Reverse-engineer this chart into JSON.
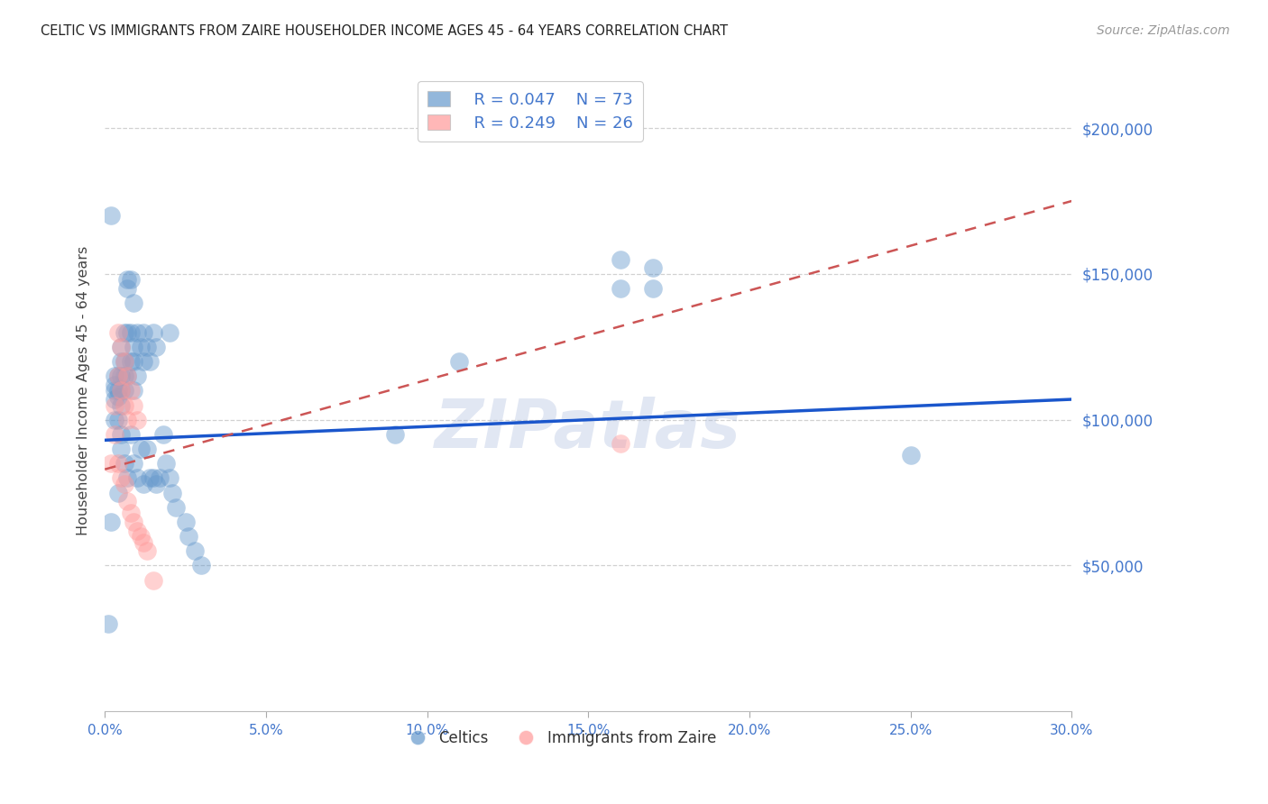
{
  "title": "CELTIC VS IMMIGRANTS FROM ZAIRE HOUSEHOLDER INCOME AGES 45 - 64 YEARS CORRELATION CHART",
  "source": "Source: ZipAtlas.com",
  "ylabel": "Householder Income Ages 45 - 64 years",
  "watermark": "ZIPatlas",
  "xlim": [
    0.0,
    0.3
  ],
  "ylim": [
    0,
    220000
  ],
  "ytick_values": [
    50000,
    100000,
    150000,
    200000
  ],
  "ytick_labels": [
    "$50,000",
    "$100,000",
    "$150,000",
    "$200,000"
  ],
  "legend_blue_r": "0.047",
  "legend_blue_n": "73",
  "legend_pink_r": "0.249",
  "legend_pink_n": "26",
  "legend_blue_label": "Celtics",
  "legend_pink_label": "Immigrants from Zaire",
  "blue_color": "#6699CC",
  "pink_color": "#FF9999",
  "blue_line_color": "#1A56CC",
  "pink_line_color": "#CC5555",
  "axis_label_color": "#4477CC",
  "blue_x": [
    0.001,
    0.002,
    0.002,
    0.003,
    0.003,
    0.003,
    0.003,
    0.003,
    0.004,
    0.004,
    0.004,
    0.004,
    0.004,
    0.005,
    0.005,
    0.005,
    0.005,
    0.005,
    0.005,
    0.005,
    0.006,
    0.006,
    0.006,
    0.006,
    0.006,
    0.007,
    0.007,
    0.007,
    0.007,
    0.007,
    0.008,
    0.008,
    0.008,
    0.008,
    0.009,
    0.009,
    0.009,
    0.009,
    0.009,
    0.01,
    0.01,
    0.01,
    0.011,
    0.011,
    0.012,
    0.012,
    0.012,
    0.013,
    0.013,
    0.014,
    0.014,
    0.015,
    0.015,
    0.016,
    0.016,
    0.017,
    0.018,
    0.019,
    0.02,
    0.02,
    0.021,
    0.022,
    0.025,
    0.026,
    0.028,
    0.03,
    0.16,
    0.17,
    0.25,
    0.17,
    0.16,
    0.09,
    0.11
  ],
  "blue_y": [
    30000,
    170000,
    65000,
    115000,
    112000,
    110000,
    107000,
    100000,
    115000,
    110000,
    108000,
    100000,
    75000,
    125000,
    120000,
    115000,
    110000,
    105000,
    95000,
    90000,
    130000,
    120000,
    115000,
    110000,
    85000,
    148000,
    145000,
    130000,
    115000,
    80000,
    148000,
    130000,
    120000,
    95000,
    140000,
    125000,
    120000,
    110000,
    85000,
    130000,
    115000,
    80000,
    125000,
    90000,
    130000,
    120000,
    78000,
    125000,
    90000,
    120000,
    80000,
    130000,
    80000,
    125000,
    78000,
    80000,
    95000,
    85000,
    130000,
    80000,
    75000,
    70000,
    65000,
    60000,
    55000,
    50000,
    145000,
    145000,
    88000,
    152000,
    155000,
    95000,
    120000
  ],
  "pink_x": [
    0.002,
    0.003,
    0.003,
    0.004,
    0.004,
    0.004,
    0.005,
    0.005,
    0.005,
    0.006,
    0.006,
    0.006,
    0.007,
    0.007,
    0.007,
    0.008,
    0.008,
    0.009,
    0.009,
    0.01,
    0.01,
    0.011,
    0.012,
    0.013,
    0.015,
    0.16
  ],
  "pink_y": [
    85000,
    105000,
    95000,
    130000,
    115000,
    85000,
    125000,
    110000,
    80000,
    120000,
    105000,
    78000,
    115000,
    100000,
    72000,
    110000,
    68000,
    105000,
    65000,
    100000,
    62000,
    60000,
    58000,
    55000,
    45000,
    92000
  ],
  "blue_trend_x": [
    0.0,
    0.3
  ],
  "blue_trend_y": [
    93000,
    107000
  ],
  "pink_trend_x": [
    0.0,
    0.3
  ],
  "pink_trend_y": [
    83000,
    175000
  ]
}
